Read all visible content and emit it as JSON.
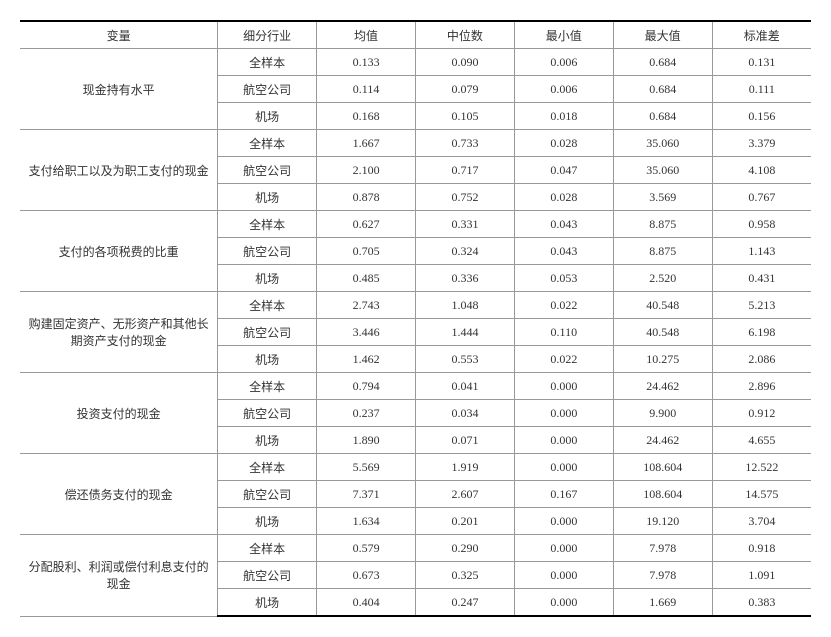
{
  "columns": [
    "变量",
    "细分行业",
    "均值",
    "中位数",
    "最小值",
    "最大值",
    "标准差"
  ],
  "col_widths": [
    "180px",
    "90px",
    "90px",
    "90px",
    "90px",
    "90px",
    "90px"
  ],
  "groups": [
    {
      "variable": "现金持有水平",
      "rows": [
        [
          "全样本",
          "0.133",
          "0.090",
          "0.006",
          "0.684",
          "0.131"
        ],
        [
          "航空公司",
          "0.114",
          "0.079",
          "0.006",
          "0.684",
          "0.111"
        ],
        [
          "机场",
          "0.168",
          "0.105",
          "0.018",
          "0.684",
          "0.156"
        ]
      ]
    },
    {
      "variable": "支付给职工以及为职工支付的现金",
      "rows": [
        [
          "全样本",
          "1.667",
          "0.733",
          "0.028",
          "35.060",
          "3.379"
        ],
        [
          "航空公司",
          "2.100",
          "0.717",
          "0.047",
          "35.060",
          "4.108"
        ],
        [
          "机场",
          "0.878",
          "0.752",
          "0.028",
          "3.569",
          "0.767"
        ]
      ]
    },
    {
      "variable": "支付的各项税费的比重",
      "rows": [
        [
          "全样本",
          "0.627",
          "0.331",
          "0.043",
          "8.875",
          "0.958"
        ],
        [
          "航空公司",
          "0.705",
          "0.324",
          "0.043",
          "8.875",
          "1.143"
        ],
        [
          "机场",
          "0.485",
          "0.336",
          "0.053",
          "2.520",
          "0.431"
        ]
      ]
    },
    {
      "variable": "购建固定资产、无形资产和其他长期资产支付的现金",
      "rows": [
        [
          "全样本",
          "2.743",
          "1.048",
          "0.022",
          "40.548",
          "5.213"
        ],
        [
          "航空公司",
          "3.446",
          "1.444",
          "0.110",
          "40.548",
          "6.198"
        ],
        [
          "机场",
          "1.462",
          "0.553",
          "0.022",
          "10.275",
          "2.086"
        ]
      ]
    },
    {
      "variable": "投资支付的现金",
      "rows": [
        [
          "全样本",
          "0.794",
          "0.041",
          "0.000",
          "24.462",
          "2.896"
        ],
        [
          "航空公司",
          "0.237",
          "0.034",
          "0.000",
          "9.900",
          "0.912"
        ],
        [
          "机场",
          "1.890",
          "0.071",
          "0.000",
          "24.462",
          "4.655"
        ]
      ]
    },
    {
      "variable": "偿还债务支付的现金",
      "rows": [
        [
          "全样本",
          "5.569",
          "1.919",
          "0.000",
          "108.604",
          "12.522"
        ],
        [
          "航空公司",
          "7.371",
          "2.607",
          "0.167",
          "108.604",
          "14.575"
        ],
        [
          "机场",
          "1.634",
          "0.201",
          "0.000",
          "19.120",
          "3.704"
        ]
      ]
    },
    {
      "variable": "分配股利、利润或偿付利息支付的现金",
      "rows": [
        [
          "全样本",
          "0.579",
          "0.290",
          "0.000",
          "7.978",
          "0.918"
        ],
        [
          "航空公司",
          "0.673",
          "0.325",
          "0.000",
          "7.978",
          "1.091"
        ],
        [
          "机场",
          "0.404",
          "0.247",
          "0.000",
          "1.669",
          "0.383"
        ]
      ]
    }
  ]
}
